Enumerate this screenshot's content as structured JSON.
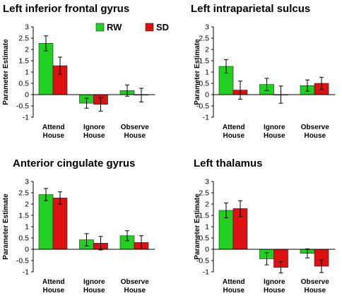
{
  "legend": [
    {
      "name": "RW",
      "color": "#22d022"
    },
    {
      "name": "SD",
      "color": "#dd1111"
    }
  ],
  "chart_data": [
    {
      "type": "bar",
      "title": "Left inferior frontal gyrus",
      "ylabel": "Parameter Estimate",
      "ylim": [
        -1,
        3
      ],
      "yticks": [
        "3",
        "2.5",
        "2",
        "1.5",
        "1",
        "0.5",
        "0",
        "-0.5",
        "-1"
      ],
      "categories": [
        [
          "Attend",
          "House"
        ],
        [
          "Ignore",
          "House"
        ],
        [
          "Observe",
          "House"
        ]
      ],
      "series": [
        {
          "name": "RW",
          "values": [
            2.27,
            -0.38,
            0.18
          ],
          "errors": [
            0.33,
            0.22,
            0.25
          ]
        },
        {
          "name": "SD",
          "values": [
            1.28,
            -0.43,
            -0.02
          ],
          "errors": [
            0.38,
            0.3,
            0.3
          ]
        }
      ],
      "legend": "top-right"
    },
    {
      "type": "bar",
      "title": "Left intraparietal sulcus",
      "ylabel": "Parameter Estimate",
      "ylim": [
        -1,
        3
      ],
      "yticks": [
        "3",
        "2.5",
        "2",
        "1.5",
        "1",
        "0.5",
        "0",
        "-0.5",
        "-1"
      ],
      "categories": [
        [
          "Attend",
          "House"
        ],
        [
          "Ignore",
          "House"
        ],
        [
          "Observe",
          "House"
        ]
      ],
      "series": [
        {
          "name": "RW",
          "values": [
            1.25,
            0.45,
            0.4
          ],
          "errors": [
            0.3,
            0.27,
            0.25
          ]
        },
        {
          "name": "SD",
          "values": [
            0.2,
            0.0,
            0.5
          ],
          "errors": [
            0.4,
            0.38,
            0.27
          ]
        }
      ]
    },
    {
      "type": "bar",
      "title": "Anterior cingulate gyrus",
      "ylabel": "Parameter Estimate",
      "ylim": [
        -1,
        3
      ],
      "yticks": [
        "3",
        "2.5",
        "2",
        "1.5",
        "1",
        "0.5",
        "0",
        "-0.5",
        "-1"
      ],
      "categories": [
        [
          "Attend",
          "House"
        ],
        [
          "Ignore",
          "House"
        ],
        [
          "Observe",
          "House"
        ]
      ],
      "series": [
        {
          "name": "RW",
          "values": [
            2.42,
            0.42,
            0.6
          ],
          "errors": [
            0.27,
            0.27,
            0.22
          ]
        },
        {
          "name": "SD",
          "values": [
            2.27,
            0.27,
            0.3
          ],
          "errors": [
            0.27,
            0.3,
            0.3
          ]
        }
      ]
    },
    {
      "type": "bar",
      "title": "Left thalamus",
      "ylabel": "Parameter Estimate",
      "ylim": [
        -1,
        3
      ],
      "yticks": [
        "3",
        "2.5",
        "2",
        "1.5",
        "1",
        "0.5",
        "0",
        "-0.5",
        "-1"
      ],
      "categories": [
        [
          "Attend",
          "House"
        ],
        [
          "Ignore",
          "House"
        ],
        [
          "Observe",
          "House"
        ]
      ],
      "series": [
        {
          "name": "RW",
          "values": [
            1.72,
            -0.42,
            -0.18
          ],
          "errors": [
            0.33,
            0.27,
            0.2
          ]
        },
        {
          "name": "SD",
          "values": [
            1.8,
            -0.8,
            -0.75
          ],
          "errors": [
            0.35,
            0.25,
            0.28
          ]
        }
      ]
    }
  ]
}
